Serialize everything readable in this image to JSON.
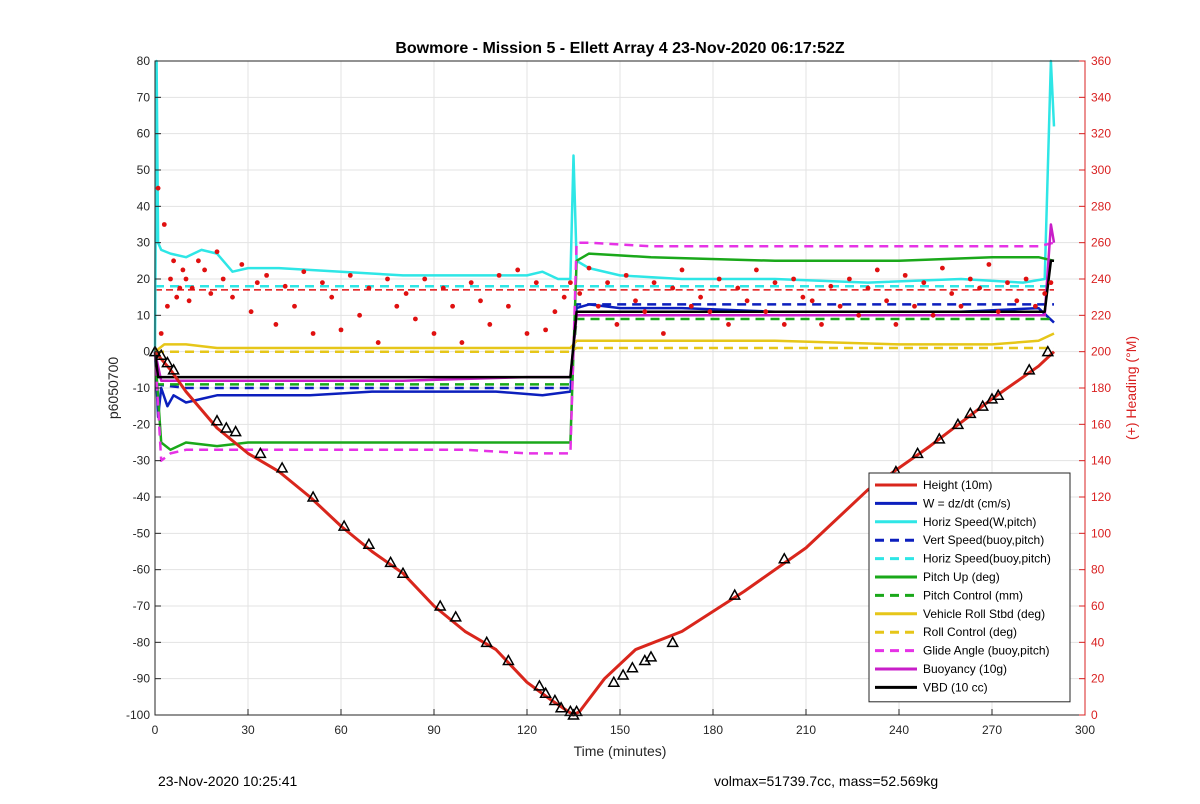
{
  "chart_data": {
    "type": "line",
    "title": "Bowmore - Mission 5 - Ellett Array 4 23-Nov-2020 06:17:52Z",
    "xlabel": "Time (minutes)",
    "ylabel": "p6050700",
    "y2label": "(+) Heading (°M)",
    "xlim": [
      0,
      300
    ],
    "ylim": [
      -100,
      80
    ],
    "y2lim": [
      0,
      360
    ],
    "xticks": [
      0,
      30,
      60,
      90,
      120,
      150,
      180,
      210,
      240,
      270,
      300
    ],
    "yticks": [
      -100,
      -90,
      -80,
      -70,
      -60,
      -50,
      -40,
      -30,
      -20,
      -10,
      0,
      10,
      20,
      30,
      40,
      50,
      60,
      70,
      80
    ],
    "y2ticks": [
      0,
      20,
      40,
      60,
      80,
      100,
      120,
      140,
      160,
      180,
      200,
      220,
      240,
      260,
      280,
      300,
      320,
      340,
      360
    ],
    "grid": true,
    "legend_position": "bottom-right",
    "colors": {
      "height": "#d9261c",
      "w": "#0c1fbd",
      "horiz": "#2ee6e6",
      "pitch": "#1aa81a",
      "roll": "#e6c619",
      "glide": "#e632e6",
      "buoy": "#c81ec8",
      "vbd": "#000000",
      "heading": "#e01010",
      "right_axis": "#d92020"
    },
    "series": [
      {
        "name": "Height (10m)",
        "color": "#d9261c",
        "style": "solid",
        "x": [
          0,
          5,
          10,
          20,
          30,
          40,
          50,
          60,
          70,
          80,
          90,
          100,
          110,
          120,
          128,
          135,
          137,
          145,
          155,
          170,
          190,
          210,
          230,
          250,
          270,
          285,
          290
        ],
        "y": [
          0,
          -5,
          -11,
          -21,
          -28,
          -33,
          -40,
          -48,
          -55,
          -61,
          -70,
          -77,
          -82,
          -91,
          -96,
          -100,
          -99,
          -90,
          -82,
          -77,
          -66,
          -54,
          -38,
          -26,
          -13,
          -4,
          0
        ]
      },
      {
        "name": "W = dz/dt (cm/s)",
        "color": "#0c1fbd",
        "style": "solid",
        "x": [
          0,
          1,
          2,
          4,
          6,
          10,
          15,
          20,
          30,
          50,
          70,
          90,
          110,
          125,
          134,
          136,
          140,
          150,
          170,
          200,
          230,
          260,
          285,
          290
        ],
        "y": [
          0,
          -18,
          -10,
          -15,
          -12,
          -14,
          -13,
          -12,
          -12,
          -12,
          -11,
          -11,
          -11,
          -12,
          -11,
          12,
          13,
          12,
          12,
          11,
          11,
          11,
          12,
          8
        ]
      },
      {
        "name": "Horiz Speed(W,pitch)",
        "color": "#2ee6e6",
        "style": "solid",
        "x": [
          0,
          0.5,
          1,
          2,
          5,
          10,
          15,
          20,
          22,
          25,
          30,
          40,
          60,
          80,
          100,
          120,
          125,
          130,
          134,
          135,
          136,
          138,
          140,
          150,
          170,
          200,
          230,
          260,
          280,
          287,
          289,
          290
        ],
        "y": [
          0,
          80,
          30,
          28,
          27,
          26,
          28,
          27,
          25,
          22,
          23,
          23,
          22,
          21,
          21,
          21,
          22,
          20,
          20,
          54,
          25,
          24,
          23,
          21,
          20,
          20,
          19,
          20,
          19,
          20,
          80,
          62
        ]
      },
      {
        "name": "Vert Speed(buoy,pitch)",
        "color": "#0c1fbd",
        "style": "dashed",
        "x": [
          0,
          10,
          40,
          80,
          120,
          134,
          136,
          150,
          200,
          250,
          290
        ],
        "y": [
          -9,
          -10,
          -10,
          -10,
          -10,
          -10,
          13,
          13,
          13,
          13,
          13
        ]
      },
      {
        "name": "Horiz Speed(buoy,pitch)",
        "color": "#2ee6e6",
        "style": "dashed",
        "x": [
          0,
          10,
          40,
          80,
          120,
          134,
          136,
          150,
          200,
          250,
          290
        ],
        "y": [
          18,
          18,
          18,
          18,
          18,
          18,
          18,
          18,
          18,
          18,
          18
        ]
      },
      {
        "name": "Pitch Up (deg)",
        "color": "#1aa81a",
        "style": "solid",
        "x": [
          0,
          2,
          5,
          10,
          20,
          30,
          60,
          90,
          110,
          125,
          134,
          136,
          140,
          160,
          200,
          240,
          270,
          285,
          290
        ],
        "y": [
          0,
          -25,
          -27,
          -25,
          -26,
          -25,
          -25,
          -25,
          -25,
          -25,
          -25,
          25,
          27,
          26,
          25,
          25,
          26,
          26,
          25
        ]
      },
      {
        "name": "Pitch Control (mm)",
        "color": "#1aa81a",
        "style": "dashed",
        "x": [
          0,
          10,
          40,
          80,
          120,
          134,
          136,
          150,
          200,
          250,
          290
        ],
        "y": [
          -9,
          -9,
          -9,
          -9,
          -9,
          -9,
          9,
          9,
          9,
          9,
          9
        ]
      },
      {
        "name": "Vehicle Roll Stbd (deg)",
        "color": "#e6c619",
        "style": "solid",
        "x": [
          0,
          3,
          10,
          20,
          30,
          60,
          90,
          120,
          134,
          136,
          140,
          160,
          200,
          240,
          270,
          285,
          290
        ],
        "y": [
          0,
          2,
          2,
          1,
          1,
          1,
          1,
          1,
          1,
          3,
          3,
          3,
          3,
          2,
          2,
          3,
          5
        ]
      },
      {
        "name": "Roll Control (deg)",
        "color": "#e6c619",
        "style": "dashed",
        "x": [
          0,
          10,
          40,
          80,
          120,
          134,
          136,
          150,
          200,
          250,
          290
        ],
        "y": [
          0,
          0,
          0,
          0,
          0,
          0,
          1,
          1,
          1,
          1,
          1
        ]
      },
      {
        "name": "Glide Angle (buoy,pitch)",
        "color": "#e632e6",
        "style": "dashed",
        "x": [
          0,
          2,
          5,
          10,
          20,
          40,
          60,
          80,
          100,
          120,
          134,
          136,
          140,
          160,
          200,
          240,
          270,
          285,
          290
        ],
        "y": [
          0,
          -30,
          -28,
          -27,
          -27,
          -27,
          -27,
          -27,
          -27,
          -28,
          -28,
          30,
          30,
          29,
          29,
          29,
          29,
          29,
          30
        ]
      },
      {
        "name": "Buoyancy (10g)",
        "color": "#c81ec8",
        "style": "solid",
        "x": [
          0,
          2,
          10,
          40,
          80,
          120,
          134,
          136,
          150,
          200,
          250,
          287,
          289,
          290
        ],
        "y": [
          0,
          -8,
          -8,
          -8,
          -8,
          -7,
          -7,
          10,
          10,
          10,
          10,
          10,
          35,
          30
        ]
      },
      {
        "name": "VBD (10 cc)",
        "color": "#000000",
        "style": "solid",
        "x": [
          0,
          1,
          10,
          40,
          80,
          120,
          134,
          136,
          150,
          200,
          250,
          287,
          289,
          290
        ],
        "y": [
          0,
          -7,
          -7,
          -7,
          -7,
          -7,
          -7,
          11,
          11,
          11,
          11,
          11,
          25,
          25
        ]
      }
    ],
    "heading_scatter": {
      "axis": "right",
      "color": "#e01010",
      "x": [
        1,
        2,
        3,
        4,
        5,
        6,
        7,
        8,
        9,
        10,
        11,
        12,
        14,
        16,
        18,
        20,
        22,
        25,
        28,
        31,
        33,
        36,
        39,
        42,
        45,
        48,
        51,
        54,
        57,
        60,
        63,
        66,
        69,
        72,
        75,
        78,
        81,
        84,
        87,
        90,
        93,
        96,
        99,
        102,
        105,
        108,
        111,
        114,
        117,
        120,
        123,
        126,
        129,
        132,
        134,
        137,
        140,
        143,
        146,
        149,
        152,
        155,
        158,
        161,
        164,
        167,
        170,
        173,
        176,
        179,
        182,
        185,
        188,
        191,
        194,
        197,
        200,
        203,
        206,
        209,
        212,
        215,
        218,
        221,
        224,
        227,
        230,
        233,
        236,
        239,
        242,
        245,
        248,
        251,
        254,
        257,
        260,
        263,
        266,
        269,
        272,
        275,
        278,
        281,
        284,
        287,
        289
      ],
      "y": [
        290,
        210,
        270,
        225,
        240,
        250,
        230,
        235,
        245,
        240,
        228,
        235,
        250,
        245,
        232,
        255,
        240,
        230,
        248,
        222,
        238,
        242,
        215,
        236,
        225,
        244,
        210,
        238,
        230,
        212,
        242,
        220,
        235,
        205,
        240,
        225,
        232,
        218,
        240,
        210,
        235,
        225,
        205,
        238,
        228,
        215,
        242,
        225,
        245,
        210,
        238,
        212,
        222,
        230,
        238,
        232,
        246,
        225,
        238,
        215,
        242,
        228,
        222,
        238,
        210,
        235,
        245,
        225,
        230,
        222,
        240,
        215,
        235,
        228,
        245,
        222,
        238,
        215,
        240,
        230,
        228,
        215,
        236,
        225,
        240,
        220,
        235,
        245,
        228,
        215,
        242,
        225,
        238,
        220,
        246,
        232,
        225,
        240,
        235,
        248,
        222,
        238,
        228,
        240,
        225,
        232,
        238
      ]
    },
    "heading_mean_dashed": {
      "color": "#e01010",
      "segments": [
        {
          "x": [
            0,
            135
          ],
          "y": [
            17,
            17
          ]
        },
        {
          "x": [
            136,
            290
          ],
          "y": [
            17,
            17
          ]
        }
      ]
    },
    "height_markers": {
      "x": [
        0,
        2,
        4,
        6,
        20,
        23,
        26,
        34,
        41,
        51,
        61,
        69,
        76,
        80,
        92,
        97,
        107,
        114,
        124,
        126,
        129,
        131,
        134,
        135,
        136,
        148,
        151,
        154,
        158,
        160,
        167,
        187,
        203,
        232,
        239,
        246,
        253,
        259,
        263,
        267,
        270,
        272,
        282,
        288
      ],
      "y": [
        0,
        -1,
        -3,
        -5,
        -19,
        -21,
        -22,
        -28,
        -32,
        -40,
        -48,
        -53,
        -58,
        -61,
        -70,
        -73,
        -80,
        -85,
        -92,
        -94,
        -96,
        -98,
        -99,
        -100,
        -99,
        -91,
        -89,
        -87,
        -85,
        -84,
        -80,
        -67,
        -57,
        -37,
        -33,
        -28,
        -24,
        -20,
        -17,
        -15,
        -13,
        -12,
        -5,
        0
      ]
    }
  },
  "footer": {
    "left": "23-Nov-2020 10:25:41",
    "right": "volmax=51739.7cc, mass=52.569kg"
  }
}
